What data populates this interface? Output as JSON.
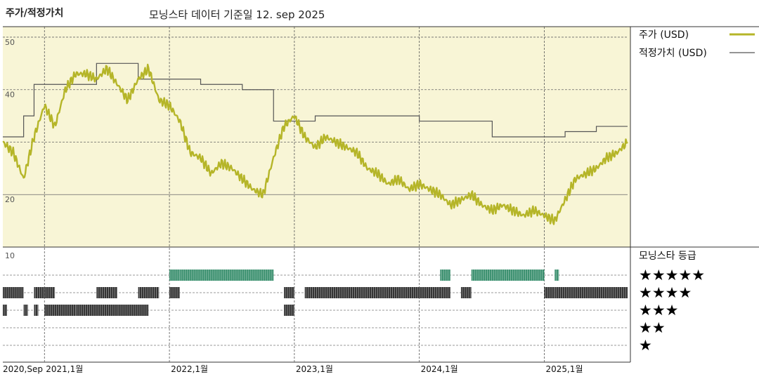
{
  "header": {
    "left_title": "주가/적정가치",
    "center_title": "모닝스타 데이터 기준일 12. sep 2025"
  },
  "colors": {
    "price_line": "#b5b528",
    "fair_value_line": "#555555",
    "upper_panel_bg": "#f8f5d6",
    "rating_high": "#3a8f6e",
    "rating_mid": "#333333"
  },
  "chart_data": [
    {
      "type": "line",
      "title": "",
      "xlabel": "",
      "ylabel": "",
      "ylim": [
        10,
        52
      ],
      "yticks": [
        20,
        30,
        40,
        50
      ],
      "ytick_labels": [
        "20",
        "",
        "40",
        "50"
      ],
      "grid": true,
      "legend_position": "right",
      "x_ticks": [
        "2020,Sep",
        "2021,1월",
        "2022,1월",
        "2023,1월",
        "2024,1월",
        "2025,1월"
      ],
      "series": [
        {
          "name": "주가 (USD)",
          "x": [
            "2020-09",
            "2020-10",
            "2020-11",
            "2020-12",
            "2021-01",
            "2021-02",
            "2021-03",
            "2021-04",
            "2021-05",
            "2021-06",
            "2021-07",
            "2021-08",
            "2021-09",
            "2021-10",
            "2021-11",
            "2021-12",
            "2022-01",
            "2022-02",
            "2022-03",
            "2022-04",
            "2022-05",
            "2022-06",
            "2022-07",
            "2022-08",
            "2022-09",
            "2022-10",
            "2022-11",
            "2022-12",
            "2023-01",
            "2023-02",
            "2023-03",
            "2023-04",
            "2023-05",
            "2023-06",
            "2023-07",
            "2023-08",
            "2023-09",
            "2023-10",
            "2023-11",
            "2023-12",
            "2024-01",
            "2024-02",
            "2024-03",
            "2024-04",
            "2024-05",
            "2024-06",
            "2024-07",
            "2024-08",
            "2024-09",
            "2024-10",
            "2024-11",
            "2024-12",
            "2025-01",
            "2025-02",
            "2025-03",
            "2025-04",
            "2025-05",
            "2025-06",
            "2025-07",
            "2025-08",
            "2025-09"
          ],
          "values": [
            30,
            28,
            23,
            31,
            37,
            33,
            40,
            43,
            43,
            42,
            44,
            41,
            38,
            42,
            44,
            38,
            37,
            34,
            28,
            27,
            24,
            26,
            25,
            23,
            21,
            20,
            27,
            33,
            35,
            31,
            29,
            31,
            30,
            29,
            28,
            25,
            24,
            22,
            23,
            21,
            22,
            21,
            20,
            18,
            19,
            20,
            18,
            17,
            18,
            17,
            16,
            17,
            16,
            15,
            19,
            23,
            24,
            25,
            27,
            28,
            30
          ]
        },
        {
          "name": "적정가치 (USD)",
          "x": [
            "2020-09",
            "2020-11",
            "2020-12",
            "2021-06",
            "2021-10",
            "2022-01",
            "2022-04",
            "2022-08",
            "2022-11",
            "2023-01",
            "2023-03",
            "2023-08",
            "2024-01",
            "2024-03",
            "2024-08",
            "2025-03",
            "2025-06",
            "2025-09"
          ],
          "values": [
            31,
            35,
            41,
            45,
            42,
            42,
            41,
            40,
            34,
            34,
            35,
            35,
            34,
            34,
            31,
            32,
            33,
            33
          ]
        }
      ]
    },
    {
      "type": "bar",
      "title": "모닝스타 등급",
      "xlabel": "",
      "ylabel": "",
      "ylim": [
        0,
        10
      ],
      "yticks": [
        10
      ],
      "ytick_labels": [
        "10"
      ],
      "rating_labels": [
        "★★★★★",
        "★★★★",
        "★★★",
        "★★",
        "★"
      ],
      "series": [
        {
          "name": "★★★★★",
          "periods": [
            [
              "2022-01",
              "2022-02"
            ],
            [
              "2022-02",
              "2022-11"
            ],
            [
              "2024-03",
              "2024-04"
            ],
            [
              "2024-06",
              "2025-01"
            ],
            [
              "2025-02",
              "2025-02"
            ]
          ]
        },
        {
          "name": "★★★★",
          "periods": [
            [
              "2020-09",
              "2020-11"
            ],
            [
              "2020-12",
              "2021-01"
            ],
            [
              "2021-01",
              "2021-02"
            ],
            [
              "2021-06",
              "2021-08"
            ],
            [
              "2021-10",
              "2021-12"
            ],
            [
              "2022-01",
              "2022-02"
            ],
            [
              "2022-12",
              "2023-01"
            ],
            [
              "2023-02",
              "2024-03"
            ],
            [
              "2024-03",
              "2024-04"
            ],
            [
              "2024-05",
              "2024-06"
            ],
            [
              "2025-01",
              "2025-02"
            ],
            [
              "2025-02",
              "2025-09"
            ]
          ]
        },
        {
          "name": "★★★",
          "periods": [
            [
              "2020-09",
              "2020-09"
            ],
            [
              "2020-11",
              "2020-11"
            ],
            [
              "2020-12",
              "2020-12"
            ],
            [
              "2021-01",
              "2021-04"
            ],
            [
              "2021-04",
              "2021-08"
            ],
            [
              "2021-08",
              "2021-11"
            ],
            [
              "2022-12",
              "2023-01"
            ]
          ]
        },
        {
          "name": "★★",
          "periods": []
        },
        {
          "name": "★",
          "periods": []
        }
      ]
    }
  ]
}
